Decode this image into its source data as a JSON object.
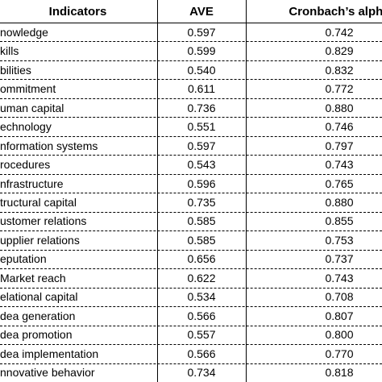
{
  "table": {
    "header": [
      "Indicators",
      "AVE",
      "Cronbach’s alpha"
    ],
    "rows": [
      [
        "nowledge",
        "0.597",
        "0.742"
      ],
      [
        "kills",
        "0.599",
        "0.829"
      ],
      [
        "bilities",
        "0.540",
        "0.832"
      ],
      [
        "ommitment",
        "0.611",
        "0.772"
      ],
      [
        "uman capital",
        "0.736",
        "0.880"
      ],
      [
        "echnology",
        "0.551",
        "0.746"
      ],
      [
        "nformation systems",
        "0.597",
        "0.797"
      ],
      [
        "rocedures",
        "0.543",
        "0.743"
      ],
      [
        "nfrastructure",
        "0.596",
        "0.765"
      ],
      [
        "tructural capital",
        "0.735",
        "0.880"
      ],
      [
        "ustomer relations",
        "0.585",
        "0.855"
      ],
      [
        "upplier relations",
        "0.585",
        "0.753"
      ],
      [
        "eputation",
        "0.656",
        "0.737"
      ],
      [
        "Market reach",
        "0.622",
        "0.743"
      ],
      [
        "elational capital",
        "0.534",
        "0.708"
      ],
      [
        "dea generation",
        "0.566",
        "0.807"
      ],
      [
        "dea promotion",
        "0.557",
        "0.800"
      ],
      [
        "dea implementation",
        "0.566",
        "0.770"
      ],
      [
        "nnovative behavior",
        "0.734",
        "0.818"
      ]
    ]
  }
}
